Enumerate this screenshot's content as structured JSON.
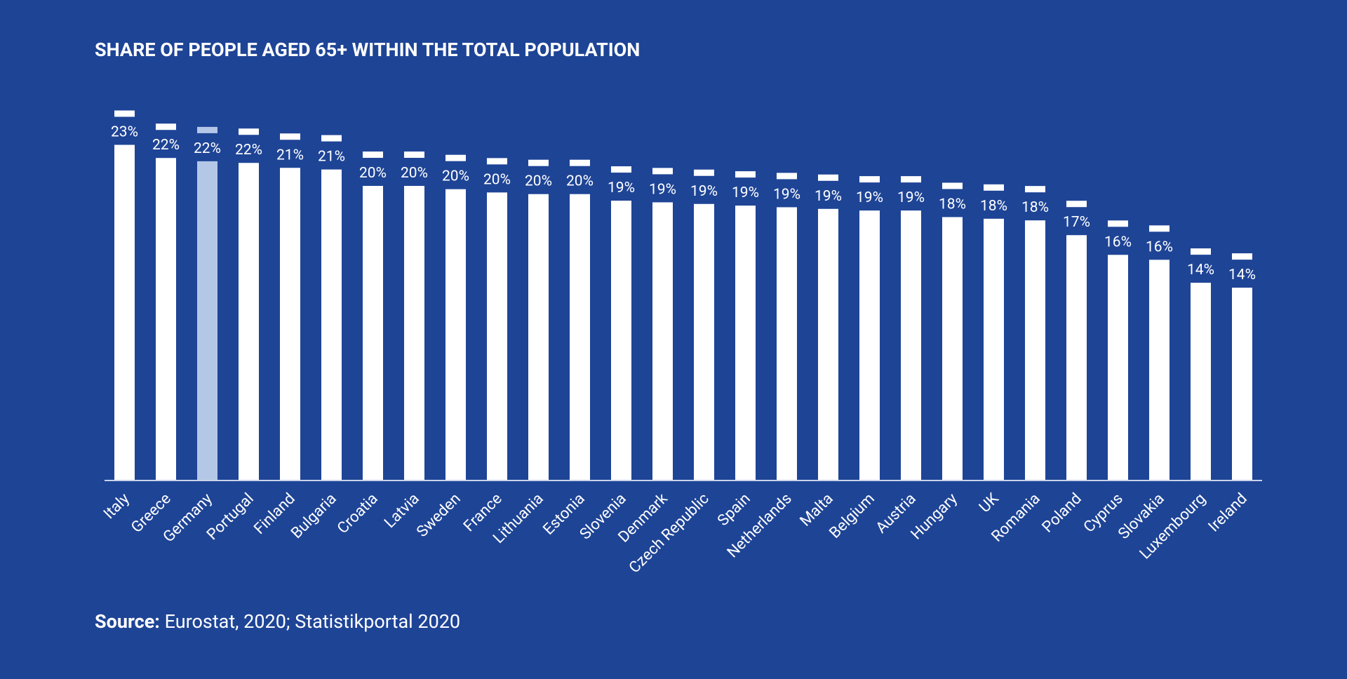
{
  "chart_data": {
    "type": "bar",
    "title": "SHARE OF PEOPLE AGED 65+ WITHIN THE TOTAL POPULATION",
    "categories": [
      "Italy",
      "Greece",
      "Germany",
      "Portugal",
      "Finland",
      "Bulgaria",
      "Croatia",
      "Latvia",
      "Sweden",
      "France",
      "Lithuania",
      "Estonia",
      "Slovenia",
      "Denmark",
      "Czech Republic",
      "Spain",
      "Netherlands",
      "Malta",
      "Belgium",
      "Austria",
      "Hungary",
      "UK",
      "Romania",
      "Poland",
      "Cyprus",
      "Slovakia",
      "Luxembourg",
      "Ireland"
    ],
    "values": [
      22.8,
      22.0,
      21.8,
      21.7,
      21.4,
      21.3,
      20.3,
      20.3,
      20.1,
      19.9,
      19.8,
      19.8,
      19.4,
      19.3,
      19.2,
      19.1,
      19.0,
      18.9,
      18.8,
      18.8,
      18.4,
      18.3,
      18.2,
      17.3,
      16.1,
      15.8,
      14.4,
      14.1
    ],
    "value_labels": [
      "23%",
      "22%",
      "22%",
      "22%",
      "21%",
      "21%",
      "20%",
      "20%",
      "20%",
      "20%",
      "20%",
      "20%",
      "19%",
      "19%",
      "19%",
      "19%",
      "19%",
      "19%",
      "19%",
      "19%",
      "18%",
      "18%",
      "18%",
      "17%",
      "16%",
      "16%",
      "14%",
      "14%"
    ],
    "colors": [
      "#ffffff",
      "#ffffff",
      "#b4c7e7",
      "#ffffff",
      "#ffffff",
      "#ffffff",
      "#ffffff",
      "#ffffff",
      "#ffffff",
      "#ffffff",
      "#ffffff",
      "#ffffff",
      "#ffffff",
      "#ffffff",
      "#ffffff",
      "#ffffff",
      "#ffffff",
      "#ffffff",
      "#ffffff",
      "#ffffff",
      "#ffffff",
      "#ffffff",
      "#ffffff",
      "#ffffff",
      "#ffffff",
      "#ffffff",
      "#ffffff",
      "#ffffff"
    ],
    "ylim": [
      2.4,
      25
    ],
    "source_label": "Source:",
    "source": "Eurostat, 2020; Statistikportal 2020"
  }
}
